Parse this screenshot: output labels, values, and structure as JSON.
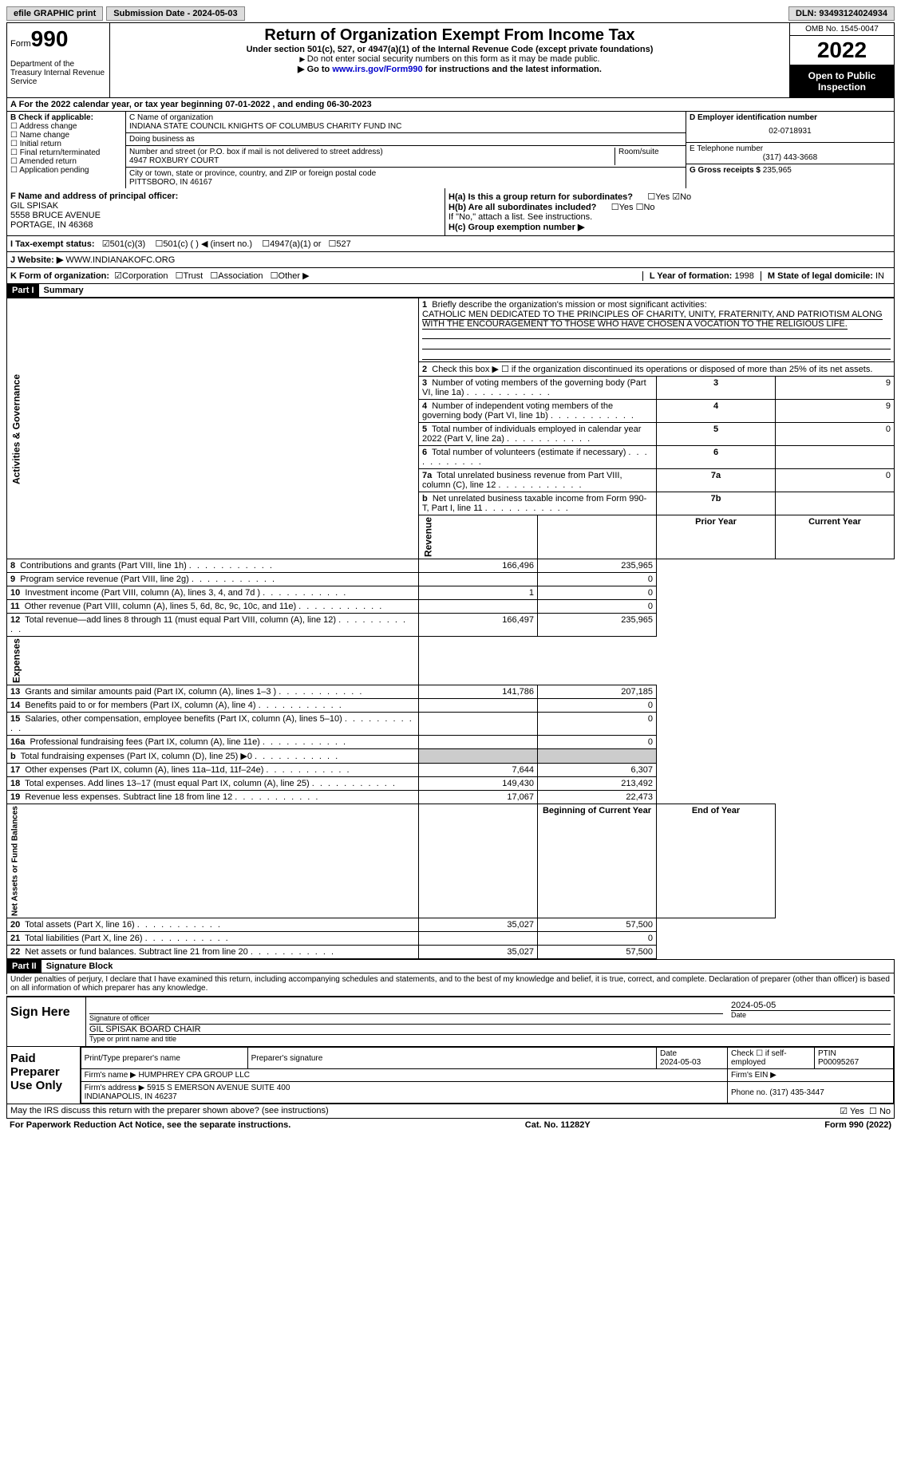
{
  "topbar": {
    "efile": "efile GRAPHIC print",
    "submission": "Submission Date - 2024-05-03",
    "dln": "DLN: 93493124024934"
  },
  "header": {
    "form_prefix": "Form",
    "form_no": "990",
    "title": "Return of Organization Exempt From Income Tax",
    "subtitle": "Under section 501(c), 527, or 4947(a)(1) of the Internal Revenue Code (except private foundations)",
    "note1": "Do not enter social security numbers on this form as it may be made public.",
    "note2_pre": "Go to ",
    "note2_link": "www.irs.gov/Form990",
    "note2_post": " for instructions and the latest information.",
    "dept": "Department of the Treasury\nInternal Revenue Service",
    "omb": "OMB No. 1545-0047",
    "year": "2022",
    "open": "Open to Public Inspection"
  },
  "rowA": "A For the 2022 calendar year, or tax year beginning 07-01-2022   , and ending 06-30-2023",
  "colB": {
    "title": "B Check if applicable:",
    "items": [
      "Address change",
      "Name change",
      "Initial return",
      "Final return/terminated",
      "Amended return",
      "Application pending"
    ]
  },
  "colC": {
    "name_lbl": "C Name of organization",
    "name": "INDIANA STATE COUNCIL KNIGHTS OF COLUMBUS CHARITY FUND INC",
    "dba_lbl": "Doing business as",
    "dba": "",
    "addr_lbl": "Number and street (or P.O. box if mail is not delivered to street address)",
    "room_lbl": "Room/suite",
    "addr": "4947 ROXBURY COURT",
    "city_lbl": "City or town, state or province, country, and ZIP or foreign postal code",
    "city": "PITTSBORO, IN  46167"
  },
  "colD": {
    "ein_lbl": "D Employer identification number",
    "ein": "02-0718931",
    "tel_lbl": "E Telephone number",
    "tel": "(317) 443-3668",
    "gross_lbl": "G Gross receipts $",
    "gross": "235,965"
  },
  "rowF": {
    "lbl": "F Name and address of principal officer:",
    "name": "GIL SPISAK",
    "addr1": "5558 BRUCE AVENUE",
    "addr2": "PORTAGE, IN  46368"
  },
  "rowH": {
    "a_lbl": "H(a)  Is this a group return for subordinates?",
    "b_lbl": "H(b)  Are all subordinates included?",
    "b_note": "If \"No,\" attach a list. See instructions.",
    "c_lbl": "H(c)  Group exemption number ▶",
    "yes": "Yes",
    "no": "No"
  },
  "rowI": {
    "lbl": "I Tax-exempt status:",
    "o1": "501(c)(3)",
    "o2": "501(c) (  ) ◀ (insert no.)",
    "o3": "4947(a)(1) or",
    "o4": "527"
  },
  "rowJ": {
    "lbl": "J Website: ▶",
    "val": "WWW.INDIANAKOFC.ORG"
  },
  "rowK": {
    "lbl": "K Form of organization:",
    "o1": "Corporation",
    "o2": "Trust",
    "o3": "Association",
    "o4": "Other ▶",
    "l_lbl": "L Year of formation:",
    "l_val": "1998",
    "m_lbl": "M State of legal domicile:",
    "m_val": "IN"
  },
  "part1": {
    "hdr": "Part I",
    "title": "Summary",
    "line1_lbl": "Briefly describe the organization's mission or most significant activities:",
    "line1_val": "CATHOLIC MEN DEDICATED TO THE PRINCIPLES OF CHARITY, UNITY, FRATERNITY, AND PATRIOTISM ALONG WITH THE ENCOURAGEMENT TO THOSE WHO HAVE CHOSEN A VOCATION TO THE RELIGIOUS LIFE.",
    "line2": "Check this box ▶ ☐ if the organization discontinued its operations or disposed of more than 25% of its net assets.",
    "sections": {
      "gov": "Activities & Governance",
      "rev": "Revenue",
      "exp": "Expenses",
      "net": "Net Assets or Fund Balances"
    },
    "cols": {
      "prior": "Prior Year",
      "current": "Current Year",
      "begin": "Beginning of Current Year",
      "end": "End of Year"
    },
    "gov_rows": [
      {
        "n": "3",
        "t": "Number of voting members of the governing body (Part VI, line 1a)",
        "box": "3",
        "v": "9"
      },
      {
        "n": "4",
        "t": "Number of independent voting members of the governing body (Part VI, line 1b)",
        "box": "4",
        "v": "9"
      },
      {
        "n": "5",
        "t": "Total number of individuals employed in calendar year 2022 (Part V, line 2a)",
        "box": "5",
        "v": "0"
      },
      {
        "n": "6",
        "t": "Total number of volunteers (estimate if necessary)",
        "box": "6",
        "v": ""
      },
      {
        "n": "7a",
        "t": "Total unrelated business revenue from Part VIII, column (C), line 12",
        "box": "7a",
        "v": "0"
      },
      {
        "n": "b",
        "t": "Net unrelated business taxable income from Form 990-T, Part I, line 11",
        "box": "7b",
        "v": ""
      }
    ],
    "rev_rows": [
      {
        "n": "8",
        "t": "Contributions and grants (Part VIII, line 1h)",
        "p": "166,496",
        "c": "235,965"
      },
      {
        "n": "9",
        "t": "Program service revenue (Part VIII, line 2g)",
        "p": "",
        "c": "0"
      },
      {
        "n": "10",
        "t": "Investment income (Part VIII, column (A), lines 3, 4, and 7d )",
        "p": "1",
        "c": "0"
      },
      {
        "n": "11",
        "t": "Other revenue (Part VIII, column (A), lines 5, 6d, 8c, 9c, 10c, and 11e)",
        "p": "",
        "c": "0"
      },
      {
        "n": "12",
        "t": "Total revenue—add lines 8 through 11 (must equal Part VIII, column (A), line 12)",
        "p": "166,497",
        "c": "235,965"
      }
    ],
    "exp_rows": [
      {
        "n": "13",
        "t": "Grants and similar amounts paid (Part IX, column (A), lines 1–3 )",
        "p": "141,786",
        "c": "207,185"
      },
      {
        "n": "14",
        "t": "Benefits paid to or for members (Part IX, column (A), line 4)",
        "p": "",
        "c": "0"
      },
      {
        "n": "15",
        "t": "Salaries, other compensation, employee benefits (Part IX, column (A), lines 5–10)",
        "p": "",
        "c": "0"
      },
      {
        "n": "16a",
        "t": "Professional fundraising fees (Part IX, column (A), line 11e)",
        "p": "",
        "c": "0"
      },
      {
        "n": "b",
        "t": "Total fundraising expenses (Part IX, column (D), line 25) ▶0",
        "p": "shaded",
        "c": "shaded"
      },
      {
        "n": "17",
        "t": "Other expenses (Part IX, column (A), lines 11a–11d, 11f–24e)",
        "p": "7,644",
        "c": "6,307"
      },
      {
        "n": "18",
        "t": "Total expenses. Add lines 13–17 (must equal Part IX, column (A), line 25)",
        "p": "149,430",
        "c": "213,492"
      },
      {
        "n": "19",
        "t": "Revenue less expenses. Subtract line 18 from line 12",
        "p": "17,067",
        "c": "22,473"
      }
    ],
    "net_rows": [
      {
        "n": "20",
        "t": "Total assets (Part X, line 16)",
        "p": "35,027",
        "c": "57,500"
      },
      {
        "n": "21",
        "t": "Total liabilities (Part X, line 26)",
        "p": "",
        "c": "0"
      },
      {
        "n": "22",
        "t": "Net assets or fund balances. Subtract line 21 from line 20",
        "p": "35,027",
        "c": "57,500"
      }
    ]
  },
  "part2": {
    "hdr": "Part II",
    "title": "Signature Block",
    "declaration": "Under penalties of perjury, I declare that I have examined this return, including accompanying schedules and statements, and to the best of my knowledge and belief, it is true, correct, and complete. Declaration of preparer (other than officer) is based on all information of which preparer has any knowledge.",
    "sign_here": "Sign Here",
    "sig_officer": "Signature of officer",
    "sig_date": "2024-05-05",
    "date_lbl": "Date",
    "name_title": "GIL SPISAK  BOARD CHAIR",
    "name_title_lbl": "Type or print name and title",
    "paid": "Paid Preparer Use Only",
    "prep_name_lbl": "Print/Type preparer's name",
    "prep_sig_lbl": "Preparer's signature",
    "prep_date_lbl": "Date",
    "prep_date": "2024-05-03",
    "prep_check_lbl": "Check ☐ if self-employed",
    "ptin_lbl": "PTIN",
    "ptin": "P00095267",
    "firm_name_lbl": "Firm's name    ▶",
    "firm_name": "HUMPHREY CPA GROUP LLC",
    "firm_ein_lbl": "Firm's EIN ▶",
    "firm_addr_lbl": "Firm's address ▶",
    "firm_addr": "5915 S EMERSON AVENUE SUITE 400\nINDIANAPOLIS, IN  46237",
    "phone_lbl": "Phone no.",
    "phone": "(317) 435-3447"
  },
  "footer": {
    "discuss": "May the IRS discuss this return with the preparer shown above? (see instructions)",
    "yes": "Yes",
    "no": "No",
    "pra": "For Paperwork Reduction Act Notice, see the separate instructions.",
    "cat": "Cat. No. 11282Y",
    "form": "Form 990 (2022)"
  }
}
